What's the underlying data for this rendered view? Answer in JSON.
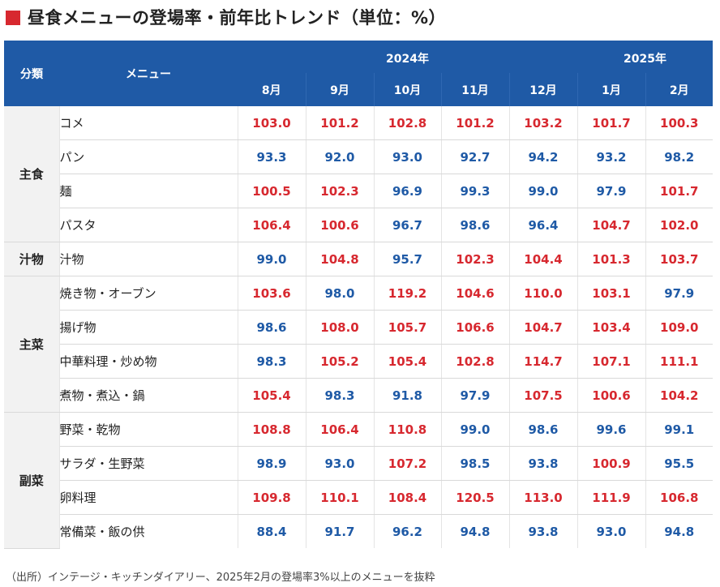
{
  "title": "昼食メニューの登場率・前年比トレンド（単位：%）",
  "source": "（出所）インテージ・キッチンダイアリー、2025年2月の登場率3%以上のメニューを抜粋",
  "colors": {
    "header_bg": "#1f5aa6",
    "above_100": "#d7282f",
    "below_100": "#1f5aa6",
    "category_bg": "#f2f2f2",
    "title_mark": "#d7282f"
  },
  "header": {
    "category": "分類",
    "menu": "メニュー",
    "year_2024": "2024年",
    "year_2025": "2025年"
  },
  "chart_data": {
    "type": "table",
    "columns": [
      "8月",
      "9月",
      "10月",
      "11月",
      "12月",
      "1月",
      "2月"
    ],
    "groups": [
      {
        "category": "主食",
        "rows": [
          {
            "menu": "コメ",
            "values": [
              103.0,
              101.2,
              102.8,
              101.2,
              103.2,
              101.7,
              100.3
            ]
          },
          {
            "menu": "パン",
            "values": [
              93.3,
              92.0,
              93.0,
              92.7,
              94.2,
              93.2,
              98.2
            ]
          },
          {
            "menu": "麺",
            "values": [
              100.5,
              102.3,
              96.9,
              99.3,
              99.0,
              97.9,
              101.7
            ]
          },
          {
            "menu": "パスタ",
            "values": [
              106.4,
              100.6,
              96.7,
              98.6,
              96.4,
              104.7,
              102.0
            ]
          }
        ]
      },
      {
        "category": "汁物",
        "rows": [
          {
            "menu": "汁物",
            "values": [
              99.0,
              104.8,
              95.7,
              102.3,
              104.4,
              101.3,
              103.7
            ]
          }
        ]
      },
      {
        "category": "主菜",
        "rows": [
          {
            "menu": "焼き物・オーブン",
            "values": [
              103.6,
              98.0,
              119.2,
              104.6,
              110.0,
              103.1,
              97.9
            ]
          },
          {
            "menu": "揚げ物",
            "values": [
              98.6,
              108.0,
              105.7,
              106.6,
              104.7,
              103.4,
              109.0
            ]
          },
          {
            "menu": "中華料理・炒め物",
            "values": [
              98.3,
              105.2,
              105.4,
              102.8,
              114.7,
              107.1,
              111.1
            ]
          },
          {
            "menu": "煮物・煮込・鍋",
            "values": [
              105.4,
              98.3,
              91.8,
              97.9,
              107.5,
              100.6,
              104.2
            ]
          }
        ]
      },
      {
        "category": "副菜",
        "rows": [
          {
            "menu": "野菜・乾物",
            "values": [
              108.8,
              106.4,
              110.8,
              99.0,
              98.6,
              99.6,
              99.1
            ]
          },
          {
            "menu": "サラダ・生野菜",
            "values": [
              98.9,
              93.0,
              107.2,
              98.5,
              93.8,
              100.9,
              95.5
            ]
          },
          {
            "menu": "卵料理",
            "values": [
              109.8,
              110.1,
              108.4,
              120.5,
              113.0,
              111.9,
              106.8
            ]
          },
          {
            "menu": "常備菜・飯の供",
            "values": [
              88.4,
              91.7,
              96.2,
              94.8,
              93.8,
              93.0,
              94.8
            ]
          }
        ]
      }
    ]
  }
}
